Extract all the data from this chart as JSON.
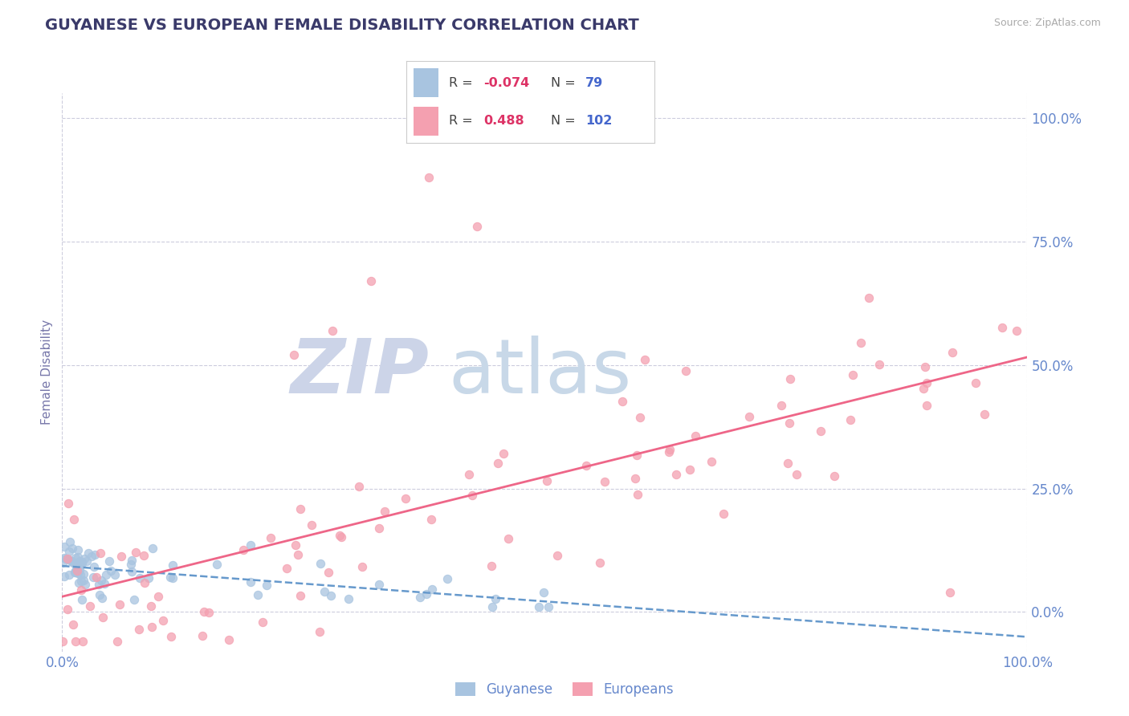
{
  "title": "GUYANESE VS EUROPEAN FEMALE DISABILITY CORRELATION CHART",
  "source": "Source: ZipAtlas.com",
  "ylabel": "Female Disability",
  "xlim": [
    0.0,
    1.0
  ],
  "ylim": [
    -0.08,
    1.05
  ],
  "xtick_labels": [
    "0.0%",
    "100.0%"
  ],
  "ytick_labels": [
    "0.0%",
    "25.0%",
    "50.0%",
    "75.0%",
    "100.0%"
  ],
  "ytick_positions": [
    0.0,
    0.25,
    0.5,
    0.75,
    1.0
  ],
  "guyanese_color": "#a8c4e0",
  "europeans_color": "#f4a0b0",
  "guyanese_R": -0.074,
  "guyanese_N": 79,
  "europeans_R": 0.488,
  "europeans_N": 102,
  "title_color": "#3a3a6a",
  "axis_label_color": "#7777aa",
  "tick_color": "#6688cc",
  "R_value_color": "#dd3366",
  "N_value_color": "#4466cc",
  "watermark_zip_color": "#ccd4e8",
  "watermark_atlas_color": "#c8d8e8",
  "guyanese_line_color": "#6699cc",
  "europeans_line_color": "#ee6688",
  "grid_color": "#ccccdd",
  "background_color": "#ffffff",
  "legend_border_color": "#cccccc",
  "source_color": "#aaaaaa"
}
